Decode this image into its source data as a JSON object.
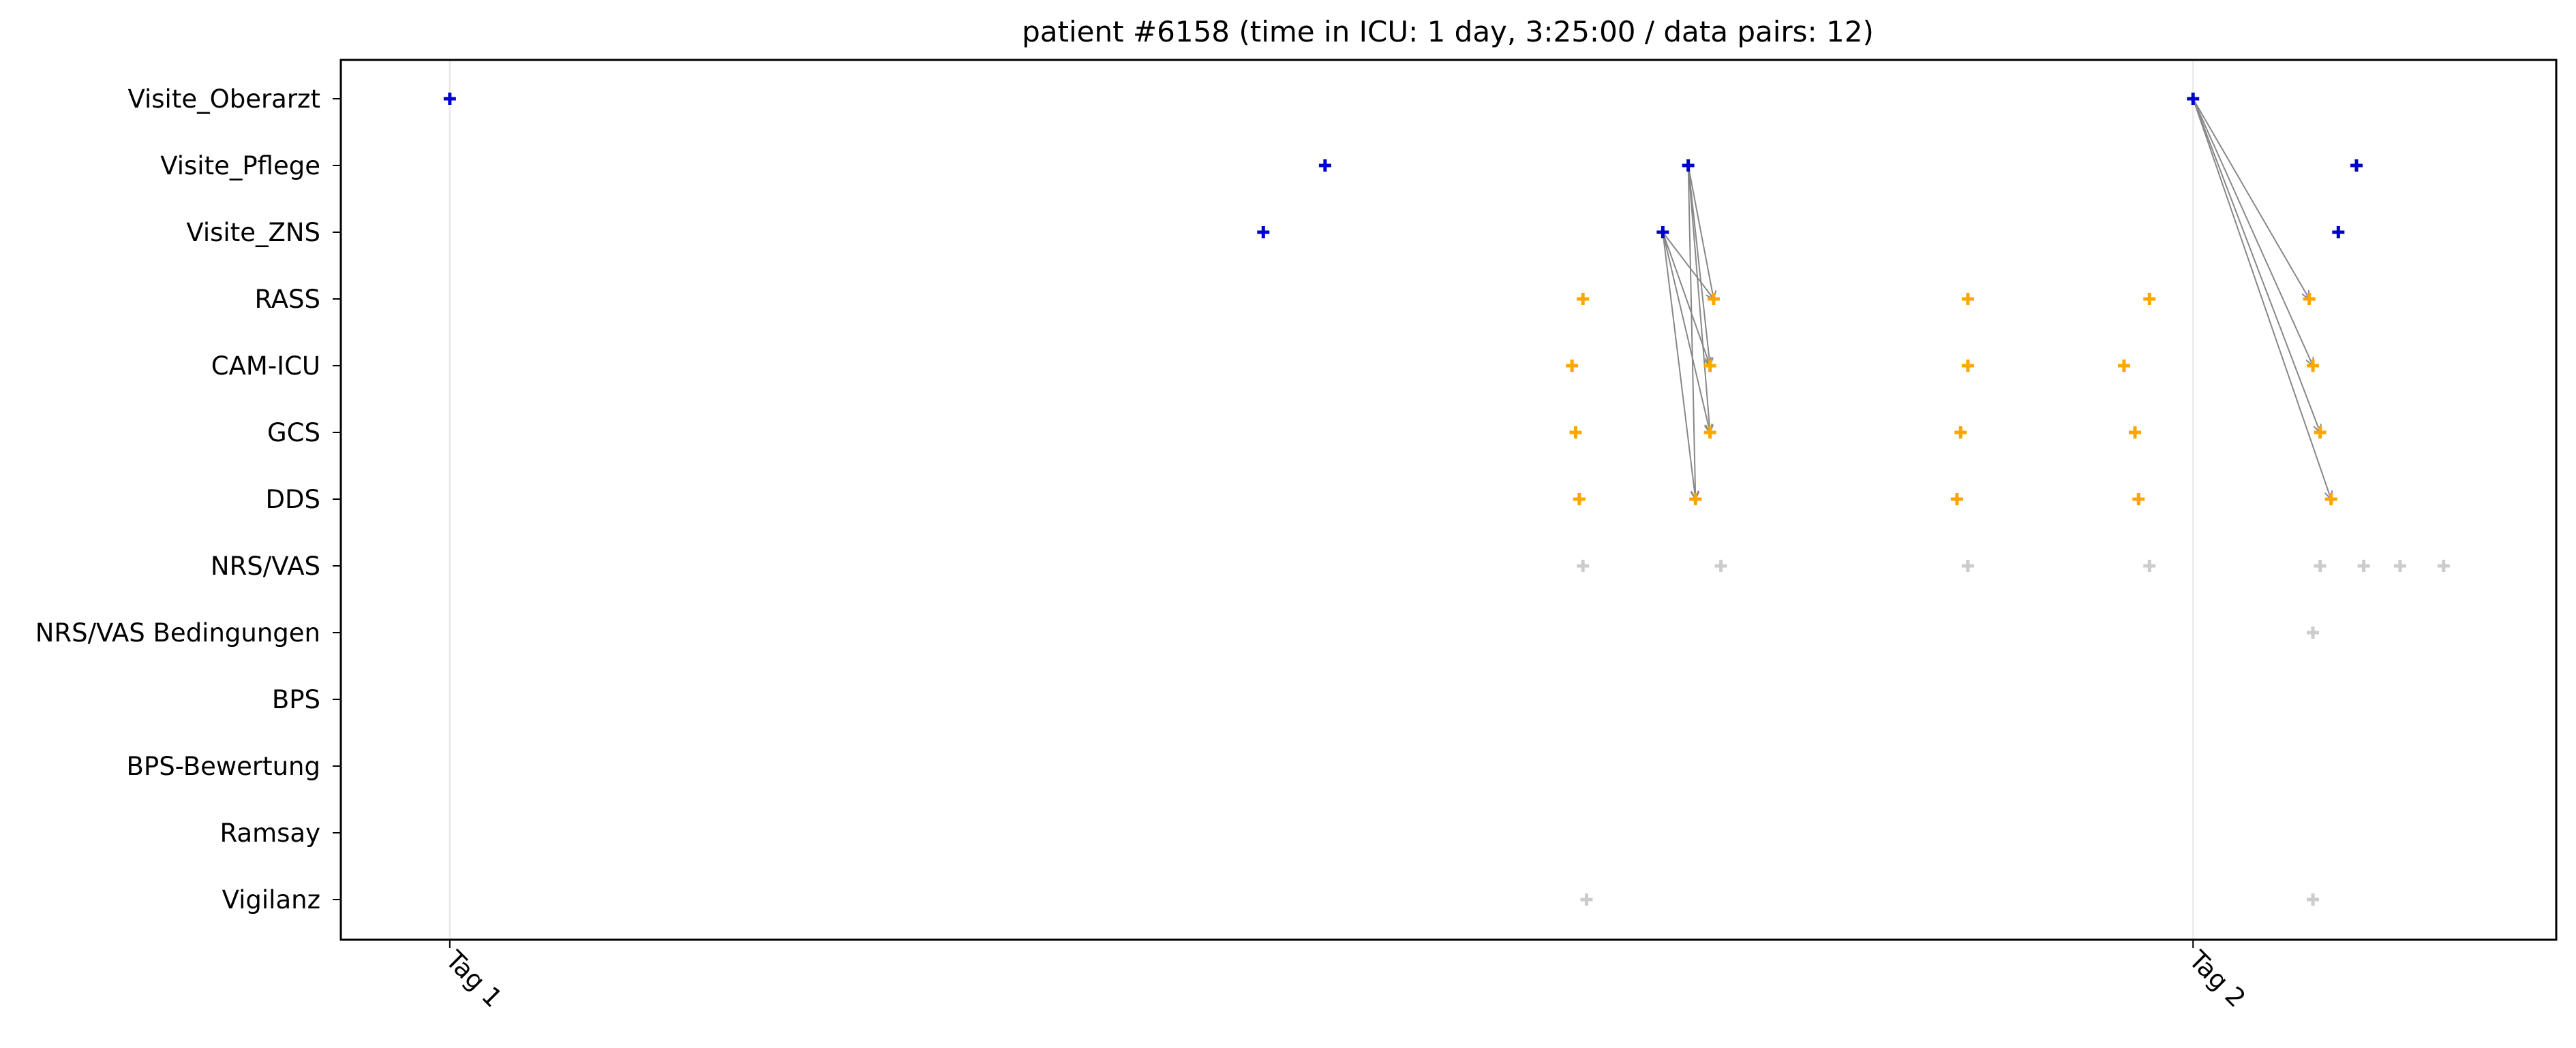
{
  "chart_data": {
    "type": "scatter",
    "title": "patient #6158 (time in ICU: 1 day, 3:25:00 / data pairs: 12)",
    "xlabel": "",
    "ylabel": "",
    "x_unit": "hours since ICU admission",
    "xlim": [
      -1.5,
      29.0
    ],
    "x_ticks": [
      {
        "value": 0,
        "label": "Tag 1"
      },
      {
        "value": 24,
        "label": "Tag 2"
      }
    ],
    "categories": [
      "Visite_Oberarzt",
      "Visite_Pflege",
      "Visite_ZNS",
      "RASS",
      "CAM-ICU",
      "GCS",
      "DDS",
      "NRS/VAS",
      "NRS/VAS Bedingungen",
      "BPS",
      "BPS-Bewertung",
      "Ramsay",
      "Vigilanz"
    ],
    "grid": "vertical lines at day boundaries",
    "colors": {
      "visit": "#0000cc",
      "assessment": "#ffa500",
      "other": "#cccccc",
      "arrow": "#888888",
      "day_line": "#e6e6e6"
    },
    "series": [
      {
        "color_key": "visit",
        "points": [
          {
            "x": 0.0,
            "y": "Visite_Oberarzt"
          },
          {
            "x": 24.0,
            "y": "Visite_Oberarzt"
          },
          {
            "x": 12.05,
            "y": "Visite_Pflege"
          },
          {
            "x": 17.05,
            "y": "Visite_Pflege"
          },
          {
            "x": 26.25,
            "y": "Visite_Pflege"
          },
          {
            "x": 11.2,
            "y": "Visite_ZNS"
          },
          {
            "x": 16.7,
            "y": "Visite_ZNS"
          },
          {
            "x": 26.0,
            "y": "Visite_ZNS"
          }
        ]
      },
      {
        "color_key": "assessment",
        "points": [
          {
            "x": 15.6,
            "y": "RASS"
          },
          {
            "x": 17.4,
            "y": "RASS"
          },
          {
            "x": 20.9,
            "y": "RASS"
          },
          {
            "x": 23.4,
            "y": "RASS"
          },
          {
            "x": 25.6,
            "y": "RASS"
          },
          {
            "x": 15.45,
            "y": "CAM-ICU"
          },
          {
            "x": 17.35,
            "y": "CAM-ICU"
          },
          {
            "x": 20.9,
            "y": "CAM-ICU"
          },
          {
            "x": 23.05,
            "y": "CAM-ICU"
          },
          {
            "x": 25.65,
            "y": "CAM-ICU"
          },
          {
            "x": 15.5,
            "y": "GCS"
          },
          {
            "x": 17.35,
            "y": "GCS"
          },
          {
            "x": 20.8,
            "y": "GCS"
          },
          {
            "x": 23.2,
            "y": "GCS"
          },
          {
            "x": 25.75,
            "y": "GCS"
          },
          {
            "x": 15.55,
            "y": "DDS"
          },
          {
            "x": 17.15,
            "y": "DDS"
          },
          {
            "x": 20.75,
            "y": "DDS"
          },
          {
            "x": 23.25,
            "y": "DDS"
          },
          {
            "x": 25.9,
            "y": "DDS"
          }
        ]
      },
      {
        "color_key": "other",
        "points": [
          {
            "x": 15.6,
            "y": "NRS/VAS"
          },
          {
            "x": 17.5,
            "y": "NRS/VAS"
          },
          {
            "x": 20.9,
            "y": "NRS/VAS"
          },
          {
            "x": 23.4,
            "y": "NRS/VAS"
          },
          {
            "x": 25.75,
            "y": "NRS/VAS"
          },
          {
            "x": 26.35,
            "y": "NRS/VAS"
          },
          {
            "x": 26.85,
            "y": "NRS/VAS"
          },
          {
            "x": 27.45,
            "y": "NRS/VAS"
          },
          {
            "x": 25.65,
            "y": "NRS/VAS Bedingungen"
          },
          {
            "x": 15.65,
            "y": "Vigilanz"
          },
          {
            "x": 25.65,
            "y": "Vigilanz"
          }
        ]
      }
    ],
    "pairs": [
      {
        "from": {
          "x": 16.7,
          "y": "Visite_ZNS"
        },
        "to": {
          "x": 17.4,
          "y": "RASS"
        }
      },
      {
        "from": {
          "x": 16.7,
          "y": "Visite_ZNS"
        },
        "to": {
          "x": 17.35,
          "y": "CAM-ICU"
        }
      },
      {
        "from": {
          "x": 16.7,
          "y": "Visite_ZNS"
        },
        "to": {
          "x": 17.35,
          "y": "GCS"
        }
      },
      {
        "from": {
          "x": 16.7,
          "y": "Visite_ZNS"
        },
        "to": {
          "x": 17.15,
          "y": "DDS"
        }
      },
      {
        "from": {
          "x": 17.05,
          "y": "Visite_Pflege"
        },
        "to": {
          "x": 17.4,
          "y": "RASS"
        }
      },
      {
        "from": {
          "x": 17.05,
          "y": "Visite_Pflege"
        },
        "to": {
          "x": 17.35,
          "y": "CAM-ICU"
        }
      },
      {
        "from": {
          "x": 17.05,
          "y": "Visite_Pflege"
        },
        "to": {
          "x": 17.35,
          "y": "GCS"
        }
      },
      {
        "from": {
          "x": 17.05,
          "y": "Visite_Pflege"
        },
        "to": {
          "x": 17.15,
          "y": "DDS"
        }
      },
      {
        "from": {
          "x": 24.0,
          "y": "Visite_Oberarzt"
        },
        "to": {
          "x": 25.6,
          "y": "RASS"
        }
      },
      {
        "from": {
          "x": 24.0,
          "y": "Visite_Oberarzt"
        },
        "to": {
          "x": 25.65,
          "y": "CAM-ICU"
        }
      },
      {
        "from": {
          "x": 24.0,
          "y": "Visite_Oberarzt"
        },
        "to": {
          "x": 25.75,
          "y": "GCS"
        }
      },
      {
        "from": {
          "x": 24.0,
          "y": "Visite_Oberarzt"
        },
        "to": {
          "x": 25.9,
          "y": "DDS"
        }
      }
    ]
  }
}
